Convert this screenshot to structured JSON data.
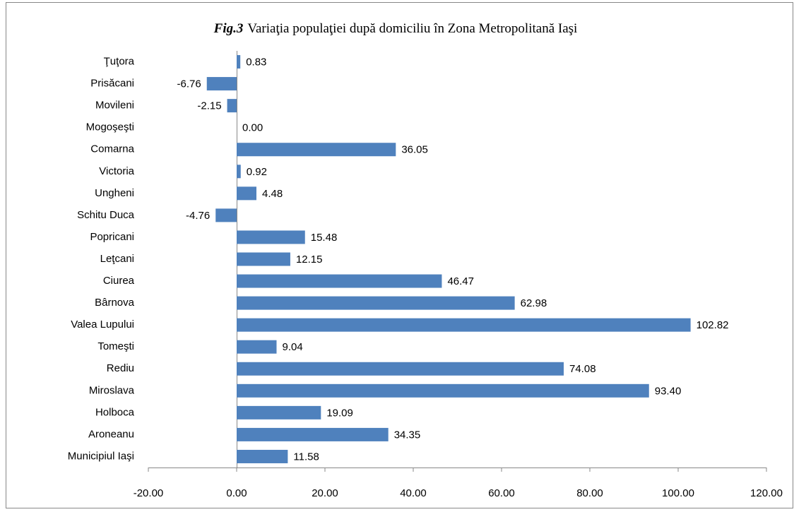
{
  "chart_data": {
    "type": "barh",
    "title_fig": "Fig.3",
    "title": "Variaţia populaţiei după domiciliu în Zona Metropolitană Iaşi",
    "categories": [
      "Ţuţora",
      "Prisăcani",
      "Movileni",
      "Mogoşeşti",
      "Comarna",
      "Victoria",
      "Ungheni",
      "Schitu Duca",
      "Popricani",
      "Leţcani",
      "Ciurea",
      "Bârnova",
      "Valea Lupului",
      "Tomeşti",
      "Rediu",
      "Miroslava",
      "Holboca",
      "Aroneanu",
      "Municipiul Iaşi"
    ],
    "values": [
      0.83,
      -6.76,
      -2.15,
      0,
      36.05,
      0.92,
      4.48,
      -4.76,
      15.48,
      12.15,
      46.47,
      62.98,
      102.82,
      9.04,
      74.08,
      93.4,
      19.09,
      34.35,
      11.58
    ],
    "value_labels": [
      "0.83",
      "-6.76",
      "-2.15",
      "0.00",
      "36.05",
      "0.92",
      "4.48",
      "-4.76",
      "15.48",
      "12.15",
      "46.47",
      "62.98",
      "102.82",
      "9.04",
      "74.08",
      "93.40",
      "19.09",
      "34.35",
      "11.58"
    ],
    "color": "#4f81bd",
    "xlim": [
      -20,
      120
    ],
    "xticks": [
      {
        "value": -20,
        "label": "-20.00"
      },
      {
        "value": 0,
        "label": "0.00"
      },
      {
        "value": 20,
        "label": "20.00"
      },
      {
        "value": 40,
        "label": "40.00"
      },
      {
        "value": 60,
        "label": "60.00"
      },
      {
        "value": 80,
        "label": "80.00"
      },
      {
        "value": 100,
        "label": "100.00"
      },
      {
        "value": 120,
        "label": "120.00"
      }
    ],
    "grid": false
  }
}
